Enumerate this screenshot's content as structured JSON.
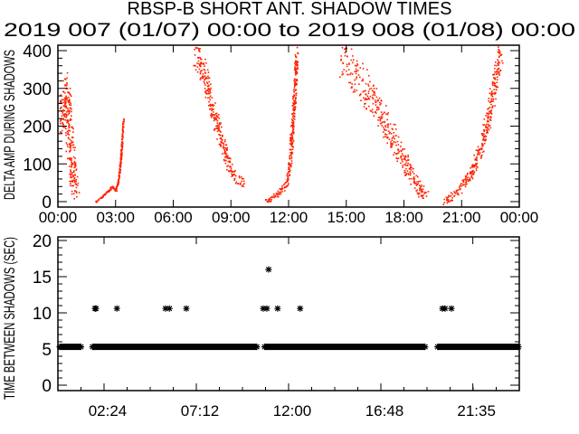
{
  "chart_data": [
    {
      "type": "scatter",
      "title": "RBSP-B SHORT ANT. SHADOW TIMES",
      "subtitle": "2019 007 (01/07) 00:00 to 2019 008 (01/08) 00:00",
      "ylabel": "DELTA AMP DURING SHADOWS",
      "xlim_hours": [
        0,
        24
      ],
      "ylim": [
        0,
        400
      ],
      "yticks": [
        "0",
        "100",
        "200",
        "300",
        "400"
      ],
      "xticks": [
        "00:00",
        "03:00",
        "06:00",
        "09:00",
        "12:00",
        "15:00",
        "18:00",
        "21:00",
        "00:00"
      ],
      "color": "#ff2200",
      "bands": [
        {
          "points": [
            [
              0.0,
              200
            ],
            [
              0.3,
              260
            ],
            [
              0.45,
              300
            ],
            [
              0.6,
              150
            ],
            [
              0.75,
              80
            ],
            [
              0.92,
              20
            ]
          ],
          "spread": 50
        },
        {
          "points": [
            [
              1.95,
              0
            ],
            [
              2.4,
              20
            ],
            [
              2.8,
              40
            ],
            [
              3.0,
              30
            ],
            [
              3.1,
              50
            ],
            [
              3.25,
              110
            ],
            [
              3.38,
              220
            ]
          ],
          "spread": 8
        },
        {
          "points": [
            [
              7.1,
              400
            ],
            [
              7.6,
              340
            ],
            [
              8.0,
              250
            ],
            [
              8.4,
              180
            ],
            [
              8.8,
              110
            ],
            [
              9.1,
              70
            ],
            [
              9.4,
              60
            ],
            [
              9.6,
              50
            ]
          ],
          "spread": 30
        },
        {
          "points": [
            [
              10.8,
              0
            ],
            [
              11.4,
              20
            ],
            [
              11.9,
              50
            ],
            [
              12.05,
              100
            ],
            [
              12.25,
              250
            ],
            [
              12.4,
              400
            ]
          ],
          "spread": 20
        },
        {
          "points": [
            [
              14.7,
              390
            ],
            [
              15.5,
              330
            ],
            [
              16.3,
              280
            ],
            [
              17.0,
              210
            ],
            [
              17.6,
              150
            ],
            [
              18.2,
              90
            ],
            [
              18.7,
              40
            ],
            [
              19.2,
              10
            ]
          ],
          "spread": 45
        },
        {
          "points": [
            [
              20.1,
              0
            ],
            [
              20.8,
              30
            ],
            [
              21.5,
              80
            ],
            [
              22.0,
              150
            ],
            [
              22.4,
              230
            ],
            [
              22.7,
              320
            ],
            [
              23.0,
              400
            ]
          ],
          "spread": 30
        }
      ]
    },
    {
      "type": "scatter",
      "ylabel": "TIME BETWEEN SHADOWS (SEC)",
      "xlim_hours": [
        0,
        24
      ],
      "ylim": [
        0,
        20
      ],
      "yticks": [
        "0",
        "5",
        "10",
        "15",
        "20"
      ],
      "xticks": [
        {
          "label": "02:24",
          "hour": 2.4
        },
        {
          "label": "07:12",
          "hour": 7.2
        },
        {
          "label": "12:00",
          "hour": 12.0
        },
        {
          "label": "16:48",
          "hour": 16.8
        },
        {
          "label": "21:35",
          "hour": 21.583
        }
      ],
      "marker": "asterisk",
      "color": "#000000",
      "baseline_value": 5.3,
      "baseline_runs_hours": [
        [
          0.0,
          1.2
        ],
        [
          1.8,
          10.35
        ],
        [
          10.75,
          19.1
        ],
        [
          19.75,
          24.0
        ]
      ],
      "points": [
        [
          1.93,
          10.6
        ],
        [
          1.98,
          10.6
        ],
        [
          3.07,
          10.6
        ],
        [
          5.6,
          10.6
        ],
        [
          5.8,
          10.6
        ],
        [
          6.68,
          10.6
        ],
        [
          10.68,
          10.6
        ],
        [
          10.87,
          10.6
        ],
        [
          11.43,
          10.6
        ],
        [
          12.6,
          10.6
        ],
        [
          10.96,
          16.0
        ],
        [
          20.0,
          10.6
        ],
        [
          20.14,
          10.6
        ],
        [
          20.47,
          10.6
        ]
      ]
    }
  ]
}
